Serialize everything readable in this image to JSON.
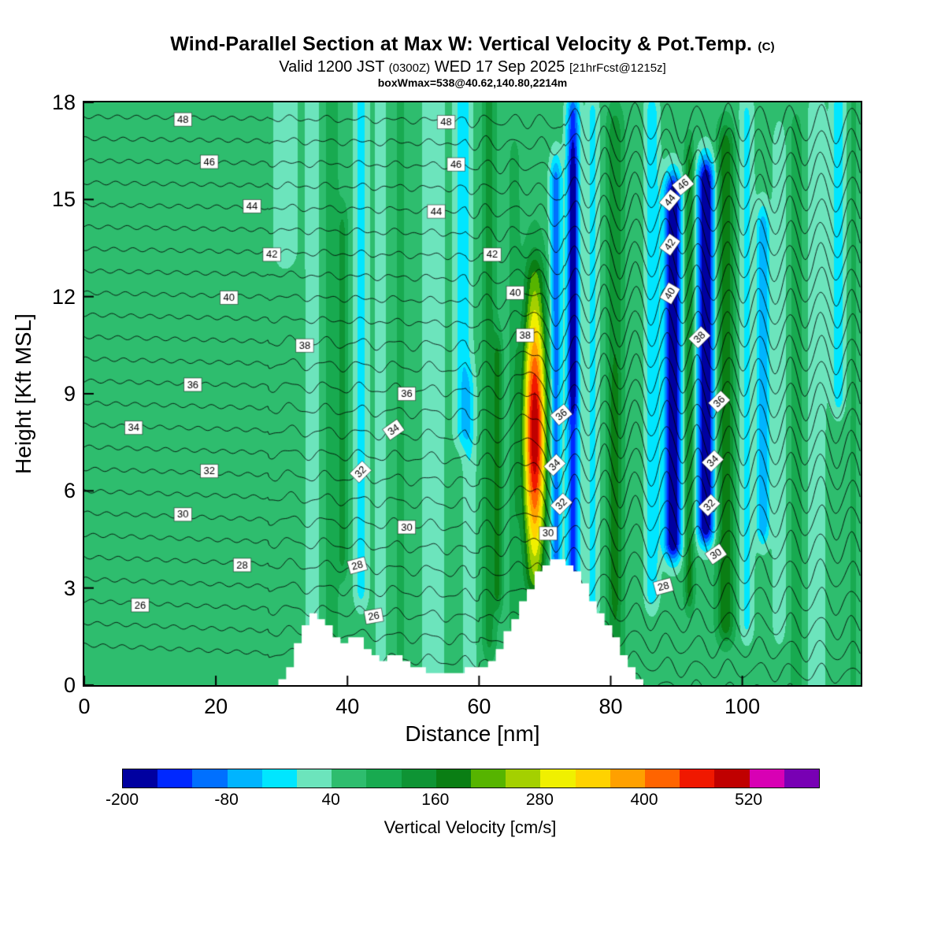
{
  "title": {
    "main": "Wind-Parallel Section at Max W: Vertical Velocity & Pot.Temp.",
    "unit": "(C)"
  },
  "subtitle": {
    "p1": "Valid 1200 JST ",
    "p2": "(0300Z)",
    "p3": " WED 17 Sep 2025 ",
    "p4": "[21hrFcst@1215z]"
  },
  "subtitle2": "boxWmax=538@40.62,140.80,2214m",
  "axes": {
    "x": {
      "label": "Distance [nm]",
      "min": 0,
      "max": 118,
      "ticks": [
        0,
        20,
        40,
        60,
        80,
        100
      ]
    },
    "y": {
      "label": "Height [Kft MSL]",
      "min": 0,
      "max": 18,
      "ticks": [
        0,
        3,
        6,
        9,
        12,
        15,
        18
      ]
    }
  },
  "colorbar": {
    "label": "Vertical Velocity [cm/s]",
    "min": -200,
    "step": 40,
    "tick_labels": [
      -200,
      -80,
      40,
      160,
      280,
      400,
      520
    ],
    "colors": [
      "#0000a0",
      "#0028ff",
      "#0070ff",
      "#00b4ff",
      "#00e6ff",
      "#6ce4bc",
      "#2ebd6e",
      "#18aa50",
      "#0e9434",
      "#0a7e14",
      "#56b400",
      "#a4d000",
      "#f0f000",
      "#ffd200",
      "#ffa000",
      "#ff6400",
      "#f01800",
      "#c00000",
      "#d800b4",
      "#7800b4"
    ]
  },
  "chart_data": {
    "type": "heatmap",
    "title": "Wind-Parallel Section at Max W: Vertical Velocity & Pot.Temp. (C)",
    "x_units": "nm",
    "y_units": "kft MSL",
    "w_units": "cm/s",
    "x_range": [
      0,
      118
    ],
    "y_range": [
      0,
      18
    ],
    "background_w": 60,
    "stripes_format": [
      "x_center_nm",
      "x_sigma_nm",
      "w_amplitude_cm_s",
      "z_low_kft",
      "z_high_kft"
    ],
    "stripes": [
      [
        30.5,
        2.0,
        -45,
        13.5,
        19
      ],
      [
        34.6,
        1.1,
        -48,
        -1,
        19
      ],
      [
        37.6,
        0.9,
        55,
        -1,
        19
      ],
      [
        39.2,
        0.8,
        70,
        4,
        14
      ],
      [
        42.0,
        1.1,
        -75,
        3,
        19
      ],
      [
        45.0,
        1.0,
        -40,
        -1,
        19
      ],
      [
        48.0,
        1.1,
        25,
        -1,
        19
      ],
      [
        53.0,
        1.7,
        -52,
        -1,
        19
      ],
      [
        57.5,
        1.3,
        -90,
        8,
        19
      ],
      [
        58.5,
        1.0,
        -55,
        -1,
        9
      ],
      [
        61.5,
        1.0,
        75,
        1.5,
        19
      ],
      [
        62.8,
        0.7,
        105,
        3,
        10
      ],
      [
        65.3,
        0.8,
        45,
        2,
        16
      ],
      [
        68.4,
        1.5,
        80,
        3.5,
        12.5
      ],
      [
        71.6,
        0.9,
        -165,
        4,
        15.5
      ],
      [
        74.2,
        1.0,
        -195,
        3,
        17.5
      ],
      [
        74.2,
        0.8,
        -60,
        9,
        16
      ],
      [
        77.2,
        1.0,
        -75,
        2.5,
        17.5
      ],
      [
        80.6,
        1.2,
        95,
        1,
        17
      ],
      [
        80.6,
        0.8,
        35,
        3,
        9
      ],
      [
        83.6,
        0.9,
        15,
        -1,
        17
      ],
      [
        86.2,
        1.1,
        -95,
        3,
        17.5
      ],
      [
        89.4,
        1.35,
        -280,
        4.5,
        15
      ],
      [
        91.9,
        0.75,
        115,
        3,
        16
      ],
      [
        94.4,
        1.35,
        -280,
        5,
        15.5
      ],
      [
        97.4,
        1.3,
        135,
        2,
        16.5
      ],
      [
        100.6,
        1.1,
        -70,
        2,
        17.5
      ],
      [
        103.1,
        1.0,
        -135,
        5,
        14
      ],
      [
        105.6,
        1.0,
        -60,
        2,
        16.5
      ],
      [
        108.2,
        1.2,
        35,
        -1,
        17
      ],
      [
        111.2,
        1.5,
        -48,
        -1,
        17.5
      ],
      [
        114.6,
        1.1,
        -85,
        9,
        19
      ],
      [
        116.8,
        1.0,
        25,
        -1,
        19
      ]
    ],
    "updraft_core": {
      "xc": 68.4,
      "sx": 1.75,
      "zc": 7.8,
      "sz": 3.8,
      "a": 380
    },
    "wmax_annotation": {
      "value_cm_s": 538,
      "lat": 40.62,
      "lon": 140.8,
      "height_m": 2214
    },
    "theta_contours": {
      "min": 24,
      "max": 48,
      "label_step": 2,
      "z_at_26": 2.6,
      "dz_per_c": 0.68,
      "tilt_base": -1.0,
      "tilt_per_c": 0.034,
      "labels": [
        [
          26,
          8.5,
          0
        ],
        [
          26,
          44,
          -10
        ],
        [
          28,
          24,
          0
        ],
        [
          28,
          41.5,
          -15
        ],
        [
          28,
          88,
          -15
        ],
        [
          30,
          15,
          0
        ],
        [
          30,
          49,
          0
        ],
        [
          30,
          70.5,
          0
        ],
        [
          30,
          96,
          -35
        ],
        [
          32,
          19,
          0
        ],
        [
          32,
          42,
          -45
        ],
        [
          32,
          72.5,
          -45
        ],
        [
          32,
          95,
          -45
        ],
        [
          34,
          7.5,
          0
        ],
        [
          34,
          47,
          -35
        ],
        [
          34,
          71.5,
          -45
        ],
        [
          34,
          95.5,
          -45
        ],
        [
          36,
          16.5,
          0
        ],
        [
          36,
          49,
          0
        ],
        [
          36,
          72.5,
          -40
        ],
        [
          36,
          96.5,
          -45
        ],
        [
          38,
          33.5,
          0
        ],
        [
          38,
          67,
          0
        ],
        [
          38,
          93.5,
          -45
        ],
        [
          40,
          22,
          0
        ],
        [
          40,
          65.5,
          0
        ],
        [
          40,
          89,
          -60
        ],
        [
          42,
          28.5,
          0
        ],
        [
          42,
          62,
          0
        ],
        [
          42,
          89,
          -55
        ],
        [
          44,
          25.5,
          0
        ],
        [
          44,
          53.5,
          0
        ],
        [
          44,
          89,
          -50
        ],
        [
          46,
          19,
          0
        ],
        [
          46,
          56.5,
          0
        ],
        [
          46,
          91,
          -40
        ],
        [
          48,
          15,
          0
        ],
        [
          48,
          55,
          0
        ]
      ]
    },
    "terrain_profile": [
      [
        29.5,
        0
      ],
      [
        30.5,
        0.3
      ],
      [
        31.5,
        0.75
      ],
      [
        32.5,
        1.3
      ],
      [
        33.5,
        1.8
      ],
      [
        34.5,
        2.15
      ],
      [
        35.5,
        2.2
      ],
      [
        36.5,
        2.0
      ],
      [
        37.5,
        1.7
      ],
      [
        38.5,
        1.4
      ],
      [
        39.5,
        1.3
      ],
      [
        40.5,
        1.45
      ],
      [
        41.5,
        1.55
      ],
      [
        42.5,
        1.35
      ],
      [
        43.5,
        1.05
      ],
      [
        44.5,
        0.9
      ],
      [
        45.5,
        0.8
      ],
      [
        46.5,
        0.9
      ],
      [
        47.5,
        1.0
      ],
      [
        48.5,
        0.9
      ],
      [
        49.5,
        0.7
      ],
      [
        50.5,
        0.55
      ],
      [
        51.5,
        0.45
      ],
      [
        52.5,
        0.4
      ],
      [
        53.5,
        0.35
      ],
      [
        55,
        0.35
      ],
      [
        56.5,
        0.4
      ],
      [
        58,
        0.45
      ],
      [
        59.5,
        0.5
      ],
      [
        61,
        0.6
      ],
      [
        62,
        0.8
      ],
      [
        63,
        1.1
      ],
      [
        64,
        1.5
      ],
      [
        65,
        1.9
      ],
      [
        66,
        2.3
      ],
      [
        67,
        2.7
      ],
      [
        68,
        3.1
      ],
      [
        69,
        3.45
      ],
      [
        70,
        3.7
      ],
      [
        71,
        3.85
      ],
      [
        72,
        3.95
      ],
      [
        73,
        3.9
      ],
      [
        74,
        3.7
      ],
      [
        75,
        3.45
      ],
      [
        76,
        3.1
      ],
      [
        77,
        2.75
      ],
      [
        78,
        2.4
      ],
      [
        79,
        2.05
      ],
      [
        80,
        1.7
      ],
      [
        81,
        1.35
      ],
      [
        82,
        1.0
      ],
      [
        83,
        0.65
      ],
      [
        84,
        0.3
      ],
      [
        85,
        0.05
      ],
      [
        85.5,
        0
      ]
    ]
  }
}
